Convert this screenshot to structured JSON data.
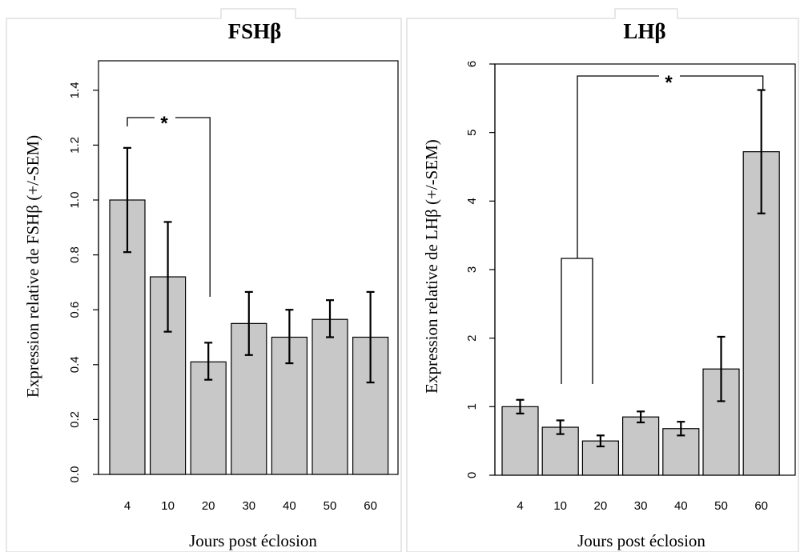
{
  "chart_data": [
    {
      "type": "bar",
      "title": "FSHβ",
      "xlabel": "Jours post éclosion",
      "ylabel": "Expression relative de FSHβ (+/-SEM)",
      "categories": [
        "4",
        "10",
        "20",
        "30",
        "40",
        "50",
        "60"
      ],
      "values": [
        1.0,
        0.72,
        0.41,
        0.55,
        0.5,
        0.565,
        0.5
      ],
      "error_low": [
        0.81,
        0.52,
        0.345,
        0.435,
        0.405,
        0.5,
        0.335
      ],
      "error_high": [
        1.19,
        0.92,
        0.48,
        0.665,
        0.6,
        0.635,
        0.665
      ],
      "ylim": [
        0,
        1.5
      ],
      "yticks": [
        0.0,
        0.2,
        0.4,
        0.6,
        0.8,
        1.0,
        1.2,
        1.4
      ],
      "ytick_labels": [
        "0.0",
        "0.2",
        "0.4",
        "0.6",
        "0.8",
        "1.0",
        "1.2",
        "1.4"
      ],
      "bar_color": "#c8c8c8",
      "annotation": {
        "label": "*",
        "from": "4",
        "to": "20"
      },
      "grid": false
    },
    {
      "type": "bar",
      "title": "LHβ",
      "xlabel": "Jours post éclosion",
      "ylabel": "Expression relative de LHβ (+/-SEM)",
      "categories": [
        "4",
        "10",
        "20",
        "30",
        "40",
        "50",
        "60"
      ],
      "values": [
        1.0,
        0.7,
        0.5,
        0.85,
        0.68,
        1.55,
        4.72
      ],
      "error_low": [
        0.9,
        0.6,
        0.42,
        0.77,
        0.58,
        1.08,
        3.82
      ],
      "error_high": [
        1.1,
        0.8,
        0.58,
        0.93,
        0.78,
        2.02,
        5.62
      ],
      "ylim": [
        0,
        6
      ],
      "yticks": [
        0,
        1,
        2,
        3,
        4,
        5,
        6
      ],
      "ytick_labels": [
        "0",
        "1",
        "2",
        "3",
        "4",
        "5",
        "6"
      ],
      "bar_color": "#c8c8c8",
      "annotation": {
        "label": "*",
        "from": "10-20",
        "to": "60"
      },
      "grid": false
    }
  ]
}
